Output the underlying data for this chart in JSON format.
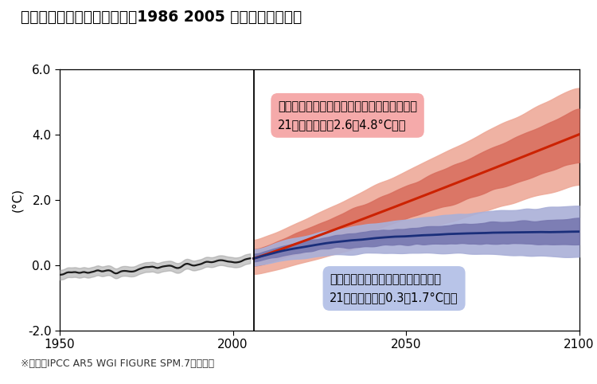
{
  "title": "世界の平均地上気温の変化（1986 2005 年平均比との差）",
  "ylabel": "(°C)",
  "source_text": "※出典　IPCC AR5 WGI FIGURE SPM.7から作成",
  "annotation_red_line1": "有効な気候変動対策が取られなかった場合、",
  "annotation_red_line2": "21世紀末には、2.6～4.8°C上昇",
  "annotation_blue_line1": "厳しい気候変動対策をとった場合、",
  "annotation_blue_line2": "21世紀末には、0.3～1.7°C上昇",
  "xlim": [
    1950,
    2100
  ],
  "ylim": [
    -2.0,
    6.0
  ],
  "yticks": [
    -2.0,
    0.0,
    2.0,
    4.0,
    6.0
  ],
  "ytick_labels": [
    "-2.0",
    "0.0",
    "2.0",
    "4.0",
    "6.0"
  ],
  "xticks": [
    1950,
    2000,
    2050,
    2100
  ],
  "vline_x": 2006,
  "background_color": "#ffffff",
  "colors": {
    "black_line": "#1a1a1a",
    "black_band": "#999999",
    "red_line": "#cc2200",
    "red_band_inner": "#d97060",
    "red_band_outer": "#eeaa99",
    "blue_line": "#1a2e7a",
    "blue_band_inner": "#7878b0",
    "blue_band_outer": "#aab0d8",
    "annotation_red_bg": "#f5aaaa",
    "annotation_blue_bg": "#b8c4e8"
  }
}
